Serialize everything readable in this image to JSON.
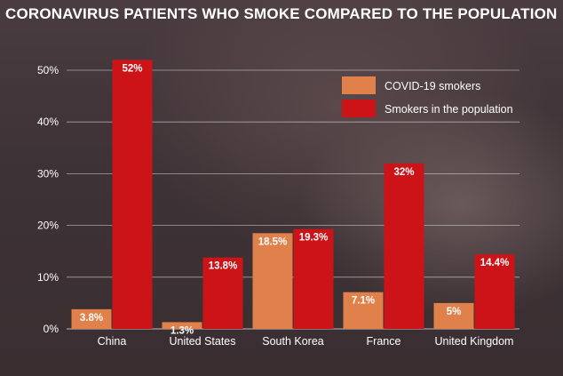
{
  "chart_data": {
    "type": "bar",
    "title": "CORONAVIRUS PATIENTS WHO SMOKE COMPARED TO THE POPULATION",
    "categories": [
      "China",
      "United States",
      "South Korea",
      "France",
      "United Kingdom"
    ],
    "series": [
      {
        "name": "COVID-19 smokers",
        "values": [
          3.8,
          1.3,
          18.5,
          7.1,
          5
        ],
        "labels": [
          "3.8%",
          "1.3%",
          "18.5%",
          "7.1%",
          "5%"
        ],
        "color": "#e0804a"
      },
      {
        "name": "Smokers in the population",
        "values": [
          52,
          13.8,
          19.3,
          32,
          14.4
        ],
        "labels": [
          "52%",
          "13.8%",
          "19.3%",
          "32%",
          "14.4%"
        ],
        "color": "#cc1418"
      }
    ],
    "y_ticks": [
      0,
      10,
      20,
      30,
      40,
      50
    ],
    "y_tick_labels": [
      "0%",
      "10%",
      "20%",
      "30%",
      "40%",
      "50%"
    ],
    "ylim": [
      0,
      52
    ],
    "grid": true,
    "legend_position": "top-right",
    "xlabel": "",
    "ylabel": ""
  }
}
